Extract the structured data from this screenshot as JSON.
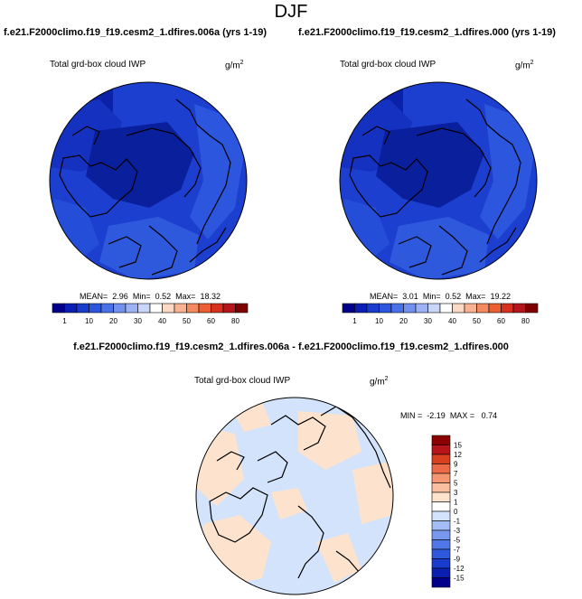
{
  "figure": {
    "season": "DJF"
  },
  "colors": {
    "abs_scale": [
      "#00008b",
      "#0b1fb5",
      "#1a3ccc",
      "#2b56dd",
      "#4a72e8",
      "#7391ef",
      "#9db2f5",
      "#c8d6fa",
      "#ffffff",
      "#fcd9c4",
      "#f9b393",
      "#f48a62",
      "#ec5e34",
      "#d7301f",
      "#b4161c",
      "#7f0000"
    ],
    "diff_scale": [
      "#00008b",
      "#0a1fb0",
      "#1a3ccc",
      "#2e59dd",
      "#4f77e8",
      "#7898f0",
      "#a3bbf6",
      "#d3e3fb",
      "#ffffff",
      "#fde3cd",
      "#f9bfa0",
      "#f49672",
      "#ec6a45",
      "#d9401f",
      "#b8151a",
      "#8b0000"
    ],
    "map_ocean_abs": "#1a3dcc",
    "map_land_abs": "#0b22a8",
    "coast": "#000000"
  },
  "panels": {
    "left": {
      "case_title": "f.e21.F2000climo.f19_f19.cesm2_1.dfires.006a (yrs 1-19)",
      "variable": "Total grd-box cloud IWP",
      "units_base": "g/m",
      "units_exp": "2",
      "stats": {
        "mean_label": "MEAN=",
        "mean": "2.96",
        "min_label": "Min=",
        "min": "0.52",
        "max_label": "Max=",
        "max": "18.32"
      }
    },
    "right": {
      "case_title": "f.e21.F2000climo.f19_f19.cesm2_1.dfires.000 (yrs 1-19)",
      "variable": "Total grd-box cloud IWP",
      "units_base": "g/m",
      "units_exp": "2",
      "stats": {
        "mean_label": "MEAN=",
        "mean": "3.01",
        "min_label": "Min=",
        "min": "0.52",
        "max_label": "Max=",
        "max": "19.22"
      }
    },
    "diff": {
      "case_title": "f.e21.F2000climo.f19_f19.cesm2_1.dfires.006a - f.e21.F2000climo.f19_f19.cesm2_1.dfires.000",
      "variable": "Total grd-box cloud IWP",
      "units_base": "g/m",
      "units_exp": "2",
      "stats": {
        "min_label": "MIN =",
        "min": "-2.19",
        "max_label": "MAX =",
        "max": "0.74"
      }
    }
  },
  "colorbar_abs": {
    "labels": [
      "1",
      "10",
      "20",
      "30",
      "40",
      "50",
      "60",
      "80"
    ],
    "label_slots": [
      1,
      3,
      5,
      7,
      9,
      11,
      13,
      15
    ]
  },
  "colorbar_diff": {
    "labels": [
      "15",
      "12",
      "9",
      "7",
      "5",
      "3",
      "1",
      "0",
      "-1",
      "-3",
      "-5",
      "-7",
      "-9",
      "-12",
      "-15"
    ]
  }
}
